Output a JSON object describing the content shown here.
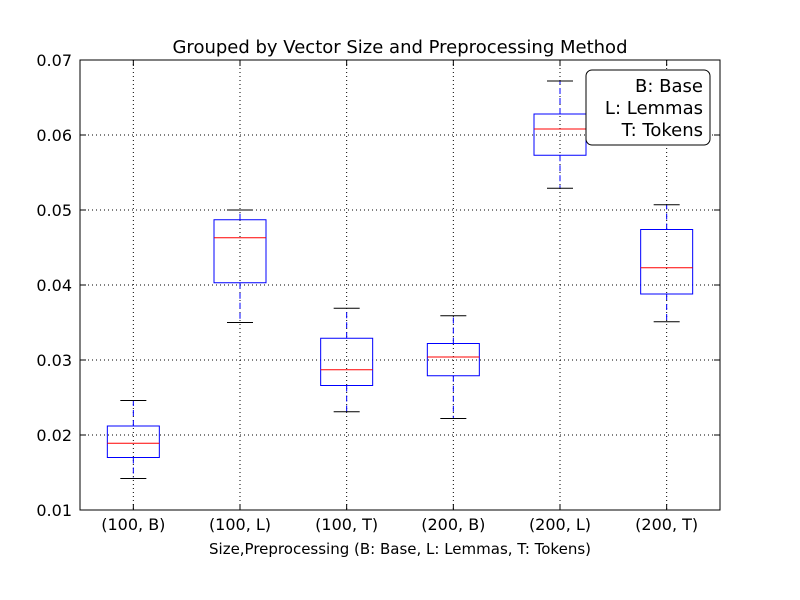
{
  "chart_data": {
    "type": "box",
    "title": "Grouped by Vector Size and Preprocessing Method",
    "xlabel": "Size,Preprocessing (B: Base, L: Lemmas, T: Tokens)",
    "ylabel": "",
    "ylim": [
      0.01,
      0.07
    ],
    "yticks": [
      "0.01",
      "0.02",
      "0.03",
      "0.04",
      "0.05",
      "0.06",
      "0.07"
    ],
    "grid": true,
    "categories": [
      "(100, B)",
      "(100, L)",
      "(100, T)",
      "(200, B)",
      "(200, L)",
      "(200, T)"
    ],
    "boxes": [
      {
        "whisker_low": 0.0142,
        "q1": 0.017,
        "median": 0.0189,
        "q3": 0.0212,
        "whisker_high": 0.0246
      },
      {
        "whisker_low": 0.035,
        "q1": 0.0403,
        "median": 0.0463,
        "q3": 0.0487,
        "whisker_high": 0.05
      },
      {
        "whisker_low": 0.0231,
        "q1": 0.0266,
        "median": 0.0287,
        "q3": 0.0329,
        "whisker_high": 0.0369
      },
      {
        "whisker_low": 0.0222,
        "q1": 0.0279,
        "median": 0.0304,
        "q3": 0.0322,
        "whisker_high": 0.0359
      },
      {
        "whisker_low": 0.0529,
        "q1": 0.0573,
        "median": 0.0608,
        "q3": 0.0628,
        "whisker_high": 0.0672
      },
      {
        "whisker_low": 0.0351,
        "q1": 0.0388,
        "median": 0.0423,
        "q3": 0.0474,
        "whisker_high": 0.0507
      }
    ],
    "legend": {
      "placement": "top-right",
      "entries": [
        "B: Base",
        "L: Lemmas",
        "T: Tokens"
      ]
    },
    "colors": {
      "box": "#0000ff",
      "median": "#ff0000",
      "whisker_cap": "#000000",
      "grid": "#000000"
    }
  }
}
